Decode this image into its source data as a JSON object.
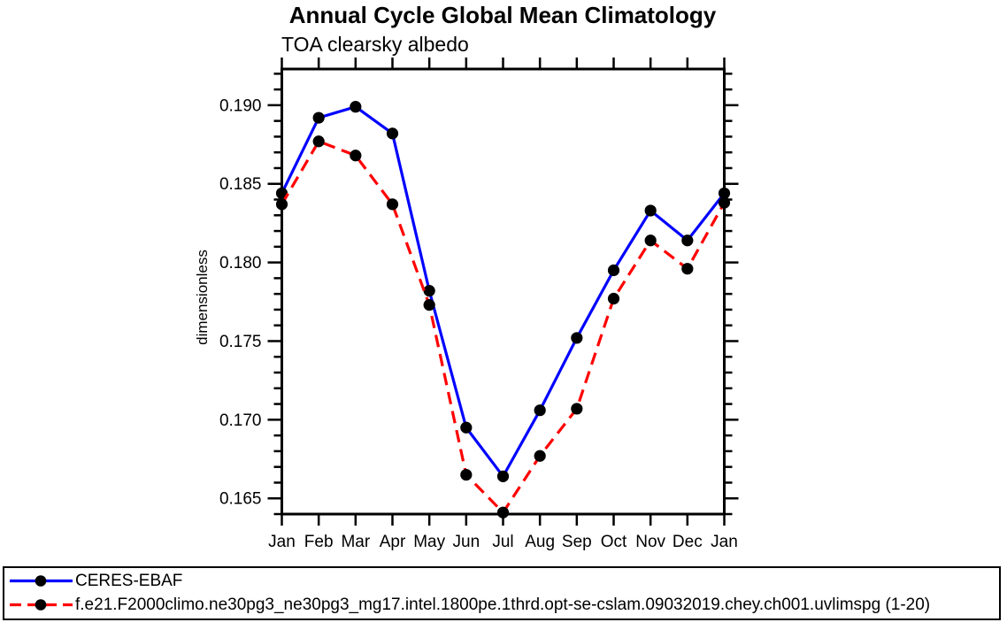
{
  "chart_data": {
    "type": "line",
    "title": "Annual Cycle Global Mean Climatology",
    "subtitle": "TOA clearsky albedo",
    "ylabel": "dimensionless",
    "xlabel": "",
    "categories": [
      "Jan",
      "Feb",
      "Mar",
      "Apr",
      "May",
      "Jun",
      "Jul",
      "Aug",
      "Sep",
      "Oct",
      "Nov",
      "Dec",
      "Jan"
    ],
    "y_tick_labels": [
      "0.165",
      "0.170",
      "0.175",
      "0.180",
      "0.185",
      "0.190"
    ],
    "y_ticks_major": [
      0.165,
      0.17,
      0.175,
      0.18,
      0.185,
      0.19
    ],
    "y_minor_step": 0.001,
    "ylim": [
      0.164,
      0.1923
    ],
    "grid": false,
    "legend_position": "framed box, bottom left",
    "axis_color": "#000000",
    "marker_shape": "filled-circle",
    "series": [
      {
        "name": "CERES-EBAF",
        "color": "#0000ff",
        "style": "solid",
        "marker": "circle",
        "marker_color": "#000000",
        "values": [
          0.1844,
          0.1892,
          0.1899,
          0.1882,
          0.1782,
          0.1695,
          0.1664,
          0.1706,
          0.1752,
          0.1795,
          0.1833,
          0.1814,
          0.1844
        ]
      },
      {
        "name": "f.e21.F2000climo.ne30pg3_ne30pg3_mg17.intel.1800pe.1thrd.opt-se-cslam.09032019.chey.ch001.uvlimspg (1-20)",
        "color": "#ff0000",
        "style": "dashed",
        "marker": "circle",
        "marker_color": "#000000",
        "values": [
          0.1837,
          0.1877,
          0.1868,
          0.1837,
          0.1773,
          0.1665,
          0.1641,
          0.1677,
          0.1707,
          0.1777,
          0.1814,
          0.1796,
          0.1838
        ]
      }
    ]
  }
}
